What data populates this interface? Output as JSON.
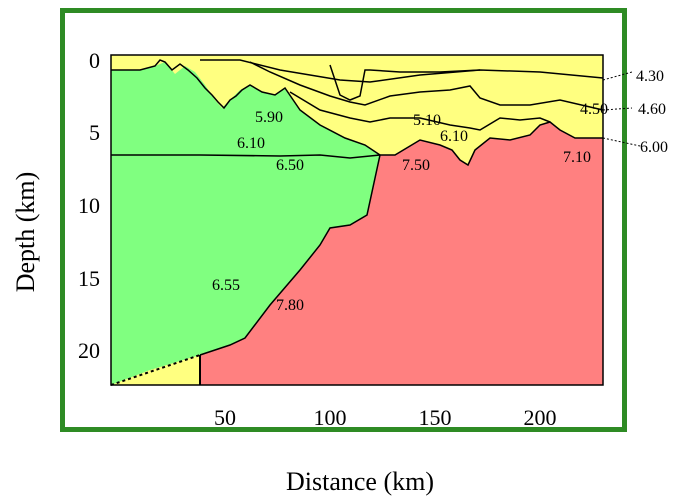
{
  "axes": {
    "ylabel": "Depth (km)",
    "xlabel": "Distance (km)",
    "y_ticks": [
      "0",
      "5",
      "10",
      "15",
      "20"
    ],
    "x_ticks": [
      "50",
      "100",
      "150",
      "200"
    ]
  },
  "colors": {
    "frame": "#2e8b24",
    "sediment": "#ffff80",
    "crust": "#80ff80",
    "mantle": "#ff8080"
  },
  "velocity_labels": {
    "v590": "5.90",
    "v610a": "6.10",
    "v650": "6.50",
    "v655": "6.55",
    "v780": "7.80",
    "v510": "5.10",
    "v610b": "6.10",
    "v750": "7.50",
    "v710": "7.10",
    "v430": "4.30",
    "v450": "4.50",
    "v460": "4.60",
    "v600": "6.00"
  }
}
